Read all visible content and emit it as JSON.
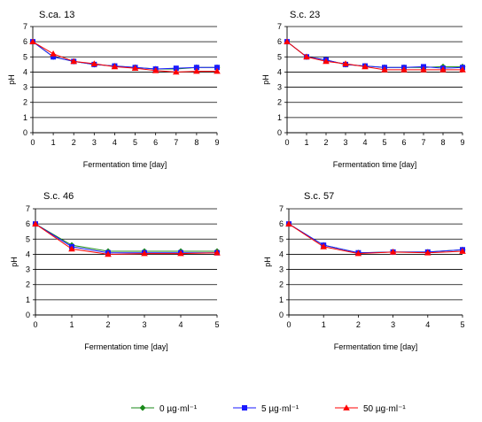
{
  "legend": {
    "placement": "bottom",
    "items": [
      {
        "name": "0 µg·ml⁻¹",
        "color": "#1a8a1a",
        "marker": "diamond"
      },
      {
        "name": "5 µg·ml⁻¹",
        "color": "#1a1aff",
        "marker": "square"
      },
      {
        "name": "50 µg·ml⁻¹",
        "color": "#ff0000",
        "marker": "triangle"
      }
    ]
  },
  "chart_data": [
    {
      "type": "line",
      "title": "S.ca. 13",
      "xlabel": "Fermentation time [day]",
      "ylabel": "pH",
      "xlim": [
        0,
        9
      ],
      "ylim": [
        0,
        7
      ],
      "grid": true,
      "x": [
        0,
        1,
        2,
        3,
        4,
        5,
        6,
        7,
        8,
        9
      ],
      "series": [
        {
          "name": "0 µg·ml⁻¹",
          "values": [
            6.0,
            5.0,
            4.7,
            4.5,
            4.4,
            4.3,
            4.2,
            4.2,
            4.3,
            4.3
          ]
        },
        {
          "name": "5 µg·ml⁻¹",
          "values": [
            6.0,
            5.0,
            4.7,
            4.5,
            4.4,
            4.3,
            4.2,
            4.25,
            4.3,
            4.3
          ]
        },
        {
          "name": "50 µg·ml⁻¹",
          "values": [
            6.0,
            5.2,
            4.7,
            4.55,
            4.35,
            4.25,
            4.1,
            4.0,
            4.05,
            4.05
          ]
        }
      ]
    },
    {
      "type": "line",
      "title": "S.c. 23",
      "xlabel": "Fermentation time [day]",
      "ylabel": "pH",
      "xlim": [
        0,
        9
      ],
      "ylim": [
        0,
        7
      ],
      "grid": true,
      "x": [
        0,
        1,
        2,
        3,
        4,
        5,
        6,
        7,
        8,
        9
      ],
      "series": [
        {
          "name": "0 µg·ml⁻¹",
          "values": [
            6.0,
            5.0,
            4.8,
            4.5,
            4.4,
            4.3,
            4.3,
            4.3,
            4.35,
            4.35
          ]
        },
        {
          "name": "5 µg·ml⁻¹",
          "values": [
            6.0,
            5.0,
            4.8,
            4.5,
            4.4,
            4.3,
            4.3,
            4.35,
            4.25,
            4.3
          ]
        },
        {
          "name": "50 µg·ml⁻¹",
          "values": [
            6.0,
            5.0,
            4.7,
            4.55,
            4.35,
            4.15,
            4.15,
            4.15,
            4.15,
            4.15
          ]
        }
      ]
    },
    {
      "type": "line",
      "title": "S.c. 46",
      "xlabel": "Fermentation time [day]",
      "ylabel": "pH",
      "xlim": [
        0,
        5
      ],
      "ylim": [
        0,
        7
      ],
      "grid": true,
      "x": [
        0,
        1,
        2,
        3,
        4,
        5
      ],
      "series": [
        {
          "name": "0 µg·ml⁻¹",
          "values": [
            6.0,
            4.6,
            4.2,
            4.2,
            4.2,
            4.2
          ]
        },
        {
          "name": "5 µg·ml⁻¹",
          "values": [
            6.0,
            4.5,
            4.1,
            4.1,
            4.1,
            4.1
          ]
        },
        {
          "name": "50 µg·ml⁻¹",
          "values": [
            6.0,
            4.35,
            4.0,
            4.05,
            4.05,
            4.1
          ]
        }
      ]
    },
    {
      "type": "line",
      "title": "S.c. 57",
      "xlabel": "Fermentation time [day]",
      "ylabel": "pH",
      "xlim": [
        0,
        5
      ],
      "ylim": [
        0,
        7
      ],
      "grid": true,
      "x": [
        0,
        1,
        2,
        3,
        4,
        5
      ],
      "series": [
        {
          "name": "0 µg·ml⁻¹",
          "values": [
            6.0,
            4.6,
            4.1,
            4.15,
            4.15,
            4.3
          ]
        },
        {
          "name": "5 µg·ml⁻¹",
          "values": [
            6.0,
            4.6,
            4.1,
            4.15,
            4.15,
            4.3
          ]
        },
        {
          "name": "50 µg·ml⁻¹",
          "values": [
            6.0,
            4.5,
            4.05,
            4.15,
            4.1,
            4.2
          ]
        }
      ]
    }
  ]
}
